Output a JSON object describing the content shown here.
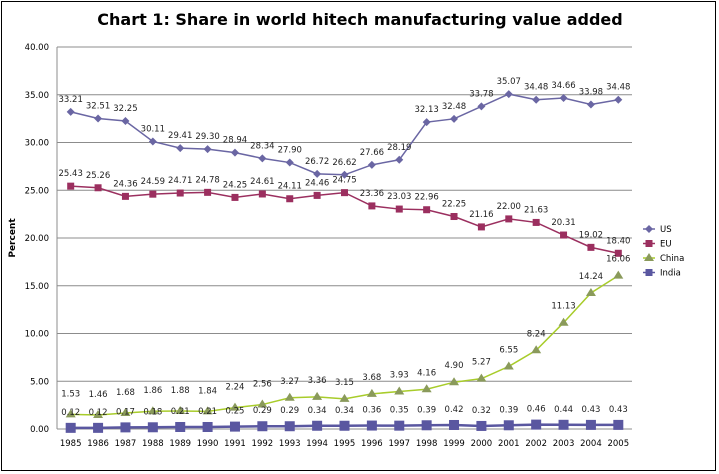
{
  "chart_data": {
    "type": "line",
    "title": "Chart 1: Share in world hitech manufacturing value added",
    "xlabel": "",
    "ylabel": "Percent",
    "ylim": [
      0,
      40
    ],
    "yticks": [
      "0.00",
      "5.00",
      "10.00",
      "15.00",
      "20.00",
      "25.00",
      "30.00",
      "35.00",
      "40.00"
    ],
    "grid": true,
    "legend_position": "right",
    "categories": [
      "1985",
      "1986",
      "1987",
      "1988",
      "1989",
      "1990",
      "1991",
      "1992",
      "1993",
      "1994",
      "1995",
      "1996",
      "1997",
      "1998",
      "1999",
      "2000",
      "2001",
      "2002",
      "2003",
      "2004",
      "2005"
    ],
    "series": [
      {
        "name": "US",
        "color": "#6a66a3",
        "marker": "diamond",
        "values": [
          33.21,
          32.51,
          32.25,
          30.11,
          29.41,
          29.3,
          28.94,
          28.34,
          27.9,
          26.72,
          26.62,
          27.66,
          28.19,
          32.13,
          32.48,
          33.78,
          35.07,
          34.48,
          34.66,
          33.98,
          34.48
        ]
      },
      {
        "name": "EU",
        "color": "#9b2f5f",
        "marker": "square",
        "values": [
          25.43,
          25.26,
          24.36,
          24.59,
          24.71,
          24.78,
          24.25,
          24.61,
          24.11,
          24.46,
          24.75,
          23.36,
          23.03,
          22.96,
          22.25,
          21.16,
          22.0,
          21.63,
          20.31,
          19.02,
          18.4
        ]
      },
      {
        "name": "China",
        "color": "#a8cc2a",
        "marker": "triangle",
        "values": [
          1.53,
          1.46,
          1.68,
          1.86,
          1.88,
          1.84,
          2.24,
          2.56,
          3.27,
          3.36,
          3.15,
          3.68,
          3.93,
          4.16,
          4.9,
          5.27,
          6.55,
          8.24,
          11.13,
          14.24,
          16.06
        ]
      },
      {
        "name": "India",
        "color": "#5a57a0",
        "marker": "bigsquare",
        "values": [
          0.12,
          0.12,
          0.17,
          0.18,
          0.21,
          0.21,
          0.25,
          0.29,
          0.29,
          0.34,
          0.34,
          0.36,
          0.35,
          0.39,
          0.42,
          0.32,
          0.39,
          0.46,
          0.44,
          0.43,
          0.43
        ]
      }
    ]
  }
}
